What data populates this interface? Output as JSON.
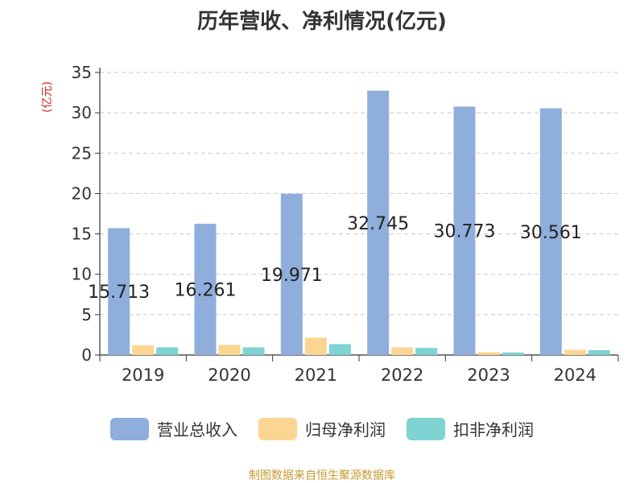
{
  "chart_data": {
    "type": "bar",
    "title": "历年营收、净利情况(亿元)",
    "ylabel": "(亿元)",
    "xlabel": "",
    "categories": [
      "2019",
      "2020",
      "2021",
      "2022",
      "2023",
      "2024"
    ],
    "ylim": [
      0,
      35
    ],
    "yticks": [
      "0",
      "5",
      "10",
      "15",
      "20",
      "25",
      "30",
      "35"
    ],
    "grid": "horizontal-dashed",
    "legend_position": "bottom",
    "series": [
      {
        "name": "营业总收入",
        "color": "#8FAEDB",
        "values": [
          15.713,
          16.261,
          19.971,
          32.745,
          30.773,
          30.561
        ],
        "labels": [
          "15.713",
          "16.261",
          "19.971",
          "32.745",
          "30.773",
          "30.561"
        ]
      },
      {
        "name": "归母净利润",
        "color": "#FBD592",
        "values": [
          1.2,
          1.25,
          2.15,
          0.95,
          0.35,
          0.65
        ]
      },
      {
        "name": "扣非净利润",
        "color": "#7FD3D3",
        "values": [
          0.95,
          0.95,
          1.35,
          0.88,
          0.32,
          0.6
        ]
      }
    ]
  },
  "unit_color": "#E02020",
  "source": {
    "text": "制图数据来自恒生聚源数据库",
    "color": "#C8982E"
  }
}
